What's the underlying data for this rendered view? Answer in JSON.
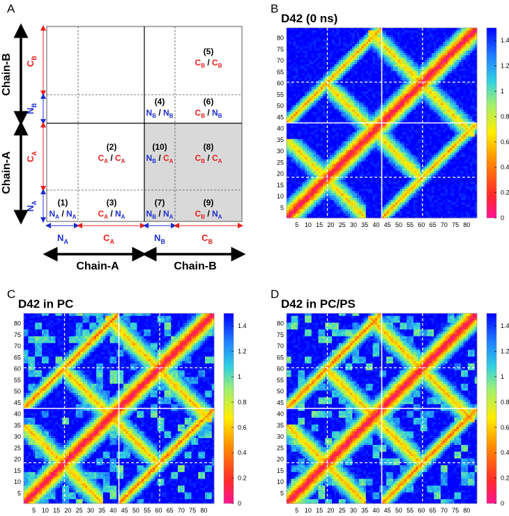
{
  "colors": {
    "red": "#e8201c",
    "blue": "#1d2fd0",
    "dark_blue": "#0000c8",
    "black": "#000000",
    "grey_block": "#d9d9d9"
  },
  "panel_letters": {
    "a": "A",
    "b": "B",
    "c": "C",
    "d": "D"
  },
  "panel_a": {
    "chain_labels": {
      "chain_a": "Chain-A",
      "chain_b": "Chain-B"
    },
    "segments": {
      "na": [
        "N",
        "A"
      ],
      "ca": [
        "C",
        "A"
      ],
      "nb": [
        "N",
        "B"
      ],
      "cb": [
        "C",
        "B"
      ]
    },
    "blocks": [
      {
        "num": "(1)",
        "a": [
          "N",
          "A"
        ],
        "b": [
          "N",
          "A"
        ],
        "ca": "blue",
        "cb": "blue",
        "shaded": false
      },
      {
        "num": "(2)",
        "a": [
          "C",
          "A"
        ],
        "b": [
          "C",
          "A"
        ],
        "ca": "red",
        "cb": "red",
        "shaded": false
      },
      {
        "num": "(3)",
        "a": [
          "C",
          "A"
        ],
        "b": [
          "N",
          "A"
        ],
        "ca": "red",
        "cb": "blue",
        "shaded": false
      },
      {
        "num": "(4)",
        "a": [
          "N",
          "B"
        ],
        "b": [
          "N",
          "B"
        ],
        "ca": "blue",
        "cb": "blue",
        "shaded": false
      },
      {
        "num": "(5)",
        "a": [
          "C",
          "B"
        ],
        "b": [
          "C",
          "B"
        ],
        "ca": "red",
        "cb": "red",
        "shaded": false
      },
      {
        "num": "(6)",
        "a": [
          "C",
          "B"
        ],
        "b": [
          "N",
          "B"
        ],
        "ca": "red",
        "cb": "blue",
        "shaded": false
      },
      {
        "num": "(7)",
        "a": [
          "N",
          "B"
        ],
        "b": [
          "N",
          "A"
        ],
        "ca": "blue",
        "cb": "blue",
        "shaded": true
      },
      {
        "num": "(8)",
        "a": [
          "C",
          "B"
        ],
        "b": [
          "C",
          "A"
        ],
        "ca": "red",
        "cb": "red",
        "shaded": true
      },
      {
        "num": "(9)",
        "a": [
          "C",
          "B"
        ],
        "b": [
          "N",
          "A"
        ],
        "ca": "red",
        "cb": "blue",
        "shaded": true
      },
      {
        "num": "(10)",
        "a": [
          "N",
          "B"
        ],
        "b": [
          "C",
          "A"
        ],
        "ca": "blue",
        "cb": "red",
        "shaded": true
      }
    ]
  },
  "chart_data": [
    {
      "type": "heatmap",
      "title": "D42 (0 ns)",
      "x_ticks": [
        "5",
        "10",
        "15",
        "20",
        "25",
        "30",
        "35",
        "40",
        "45",
        "50",
        "55",
        "60",
        "65",
        "70",
        "75",
        "80"
      ],
      "y_ticks": [
        "80",
        "75",
        "70",
        "65",
        "60",
        "55",
        "50",
        "45",
        "40",
        "35",
        "30",
        "25",
        "20",
        "15",
        "10",
        "5"
      ],
      "xlim": [
        1,
        84
      ],
      "ylim": [
        1,
        84
      ],
      "colorbar": {
        "ticks": [
          "1.4",
          "1.2",
          "1",
          "0.8",
          "0.6",
          "0.4",
          "0.2",
          "0"
        ],
        "range": [
          0,
          1.5
        ]
      },
      "chain_boundary": 42,
      "domain_boundaries": [
        18,
        60
      ],
      "grid": false
    },
    {
      "type": "heatmap",
      "title": "D42 in PC",
      "x_ticks": [
        "5",
        "10",
        "15",
        "20",
        "25",
        "30",
        "35",
        "40",
        "45",
        "50",
        "55",
        "60",
        "65",
        "70",
        "75",
        "80"
      ],
      "y_ticks": [
        "80",
        "75",
        "70",
        "65",
        "60",
        "55",
        "50",
        "45",
        "40",
        "35",
        "30",
        "25",
        "20",
        "15",
        "10",
        "5"
      ],
      "xlim": [
        1,
        84
      ],
      "ylim": [
        1,
        84
      ],
      "colorbar": {
        "ticks": [
          "1.4",
          "1.2",
          "1",
          "0.8",
          "0.6",
          "0.4",
          "0.2",
          "0"
        ],
        "range": [
          0,
          1.5
        ]
      },
      "chain_boundary": 42,
      "domain_boundaries": [
        18,
        60
      ],
      "grid": false
    },
    {
      "type": "heatmap",
      "title": "D42 in PC/PS",
      "x_ticks": [
        "5",
        "10",
        "15",
        "20",
        "25",
        "30",
        "35",
        "40",
        "45",
        "50",
        "55",
        "60",
        "65",
        "70",
        "75",
        "80"
      ],
      "y_ticks": [
        "80",
        "75",
        "70",
        "65",
        "60",
        "55",
        "50",
        "45",
        "40",
        "35",
        "30",
        "25",
        "20",
        "15",
        "10",
        "5"
      ],
      "xlim": [
        1,
        84
      ],
      "ylim": [
        1,
        84
      ],
      "colorbar": {
        "ticks": [
          "1.4",
          "1.2",
          "1",
          "0.8",
          "0.6",
          "0.4",
          "0.2",
          "0"
        ],
        "range": [
          0,
          1.5
        ]
      },
      "chain_boundary": 42,
      "domain_boundaries": [
        18,
        60
      ],
      "grid": false
    }
  ]
}
